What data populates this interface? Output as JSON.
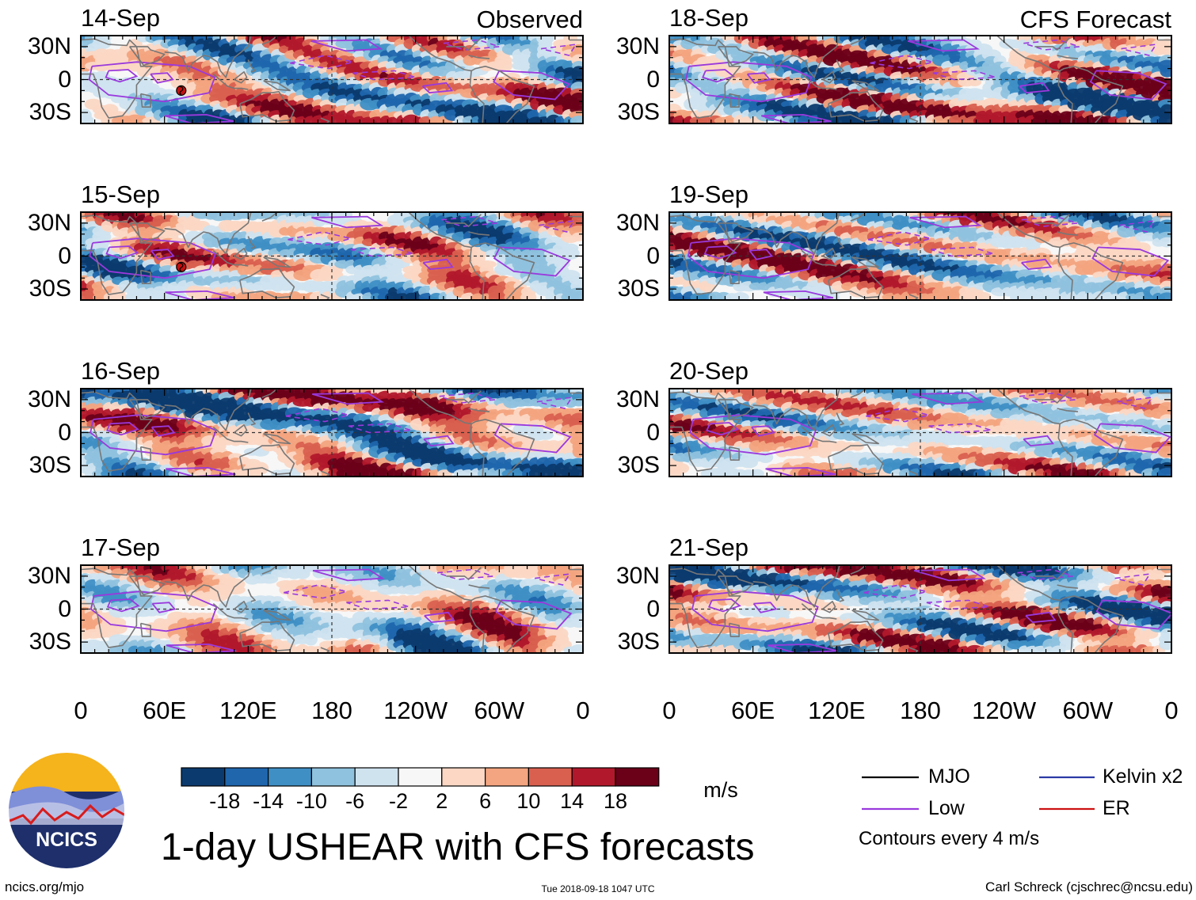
{
  "colors": {
    "scale": [
      "#0b3a6e",
      "#1f66ad",
      "#3f8fc5",
      "#8fc2de",
      "#cfe3ef",
      "#f7f7f7",
      "#fbd7c4",
      "#f3a480",
      "#d9604f",
      "#b2182b",
      "#6b0019"
    ],
    "coast": "#777777",
    "mjo": "#000000",
    "low": "#9a39dd",
    "kelvin": "#2b3aa6",
    "er": "#cc1111",
    "logo_sky": "#f5b31c",
    "logo_water": "#1e2f6b",
    "logo_hills": "#7f8fd8",
    "logo_line": "#d81c1c"
  },
  "chart_data": {
    "type": "heatmap",
    "title": "1-day USHEAR with CFS forecasts",
    "column_titles": [
      "Observed",
      "CFS Forecast"
    ],
    "panels": [
      {
        "date": "14-Sep",
        "column": "Observed",
        "seed": 14,
        "tc": true
      },
      {
        "date": "15-Sep",
        "column": "Observed",
        "seed": 15,
        "tc": true
      },
      {
        "date": "16-Sep",
        "column": "Observed",
        "seed": 16,
        "tc": false
      },
      {
        "date": "17-Sep",
        "column": "Observed",
        "seed": 17,
        "tc": false
      },
      {
        "date": "18-Sep",
        "column": "CFS Forecast",
        "seed": 18,
        "tc": false
      },
      {
        "date": "19-Sep",
        "column": "CFS Forecast",
        "seed": 19,
        "tc": false
      },
      {
        "date": "20-Sep",
        "column": "CFS Forecast",
        "seed": 20,
        "tc": false
      },
      {
        "date": "21-Sep",
        "column": "CFS Forecast",
        "seed": 21,
        "tc": false
      }
    ],
    "x_ticks": [
      "0",
      "60E",
      "120E",
      "180",
      "120W",
      "60W",
      "0"
    ],
    "x_tick_values": [
      0,
      60,
      120,
      180,
      240,
      300,
      360
    ],
    "xlim": [
      0,
      360
    ],
    "y_ticks": [
      "30N",
      "0",
      "30S"
    ],
    "y_tick_values": [
      30,
      0,
      -30
    ],
    "ylim": [
      -40,
      40
    ],
    "colorbar": {
      "labels": [
        "-18",
        "-14",
        "-10",
        "-6",
        "-2",
        "2",
        "6",
        "10",
        "14",
        "18"
      ],
      "levels": [
        -18,
        -14,
        -10,
        -6,
        -2,
        2,
        6,
        10,
        14,
        18
      ],
      "units": "m/s"
    },
    "legend": {
      "mjo": "MJO",
      "low": "Low",
      "kelvin": "Kelvin x2",
      "er": "ER",
      "contour_note": "Contours every 4 m/s"
    }
  },
  "logo": {
    "text": "NCICS"
  },
  "footer": {
    "url": "ncics.org/mjo",
    "timestamp": "Tue 2018-09-18 1047 UTC",
    "author": "Carl Schreck (cjschrec@ncsu.edu)"
  }
}
